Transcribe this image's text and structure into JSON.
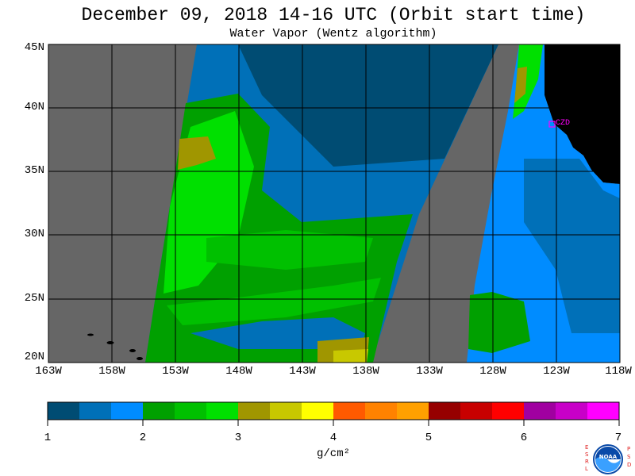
{
  "title": "December 09, 2018  14-16 UTC  (Orbit start time)",
  "subtitle": "Water Vapor (Wentz algorithm)",
  "map": {
    "lat_labels": [
      "45N",
      "40N",
      "35N",
      "30N",
      "25N",
      "20N"
    ],
    "lon_labels": [
      "163W",
      "158W",
      "153W",
      "148W",
      "143W",
      "138W",
      "133W",
      "128W",
      "123W",
      "118W"
    ],
    "station_label": "CZD",
    "colors": {
      "no_data": "#666666",
      "land": "#000000",
      "station": "#ff00ff",
      "grid": "#000000"
    }
  },
  "colorbar": {
    "tick_labels": [
      "1",
      "2",
      "3",
      "4",
      "5",
      "6",
      "7"
    ],
    "units": "g/cm²",
    "range": [
      1,
      7
    ],
    "colors": [
      "#004c73",
      "#0070b8",
      "#008cff",
      "#00a000",
      "#00c000",
      "#00e000",
      "#a09600",
      "#c8c800",
      "#ffff00",
      "#ff5a00",
      "#ff8200",
      "#ffa000",
      "#960000",
      "#c80000",
      "#ff0000",
      "#a000a0",
      "#c800c8",
      "#ff00ff"
    ]
  },
  "logo": {
    "left_letters": "ESRL",
    "right_letters": "PSD",
    "center_text": "NOAA"
  }
}
